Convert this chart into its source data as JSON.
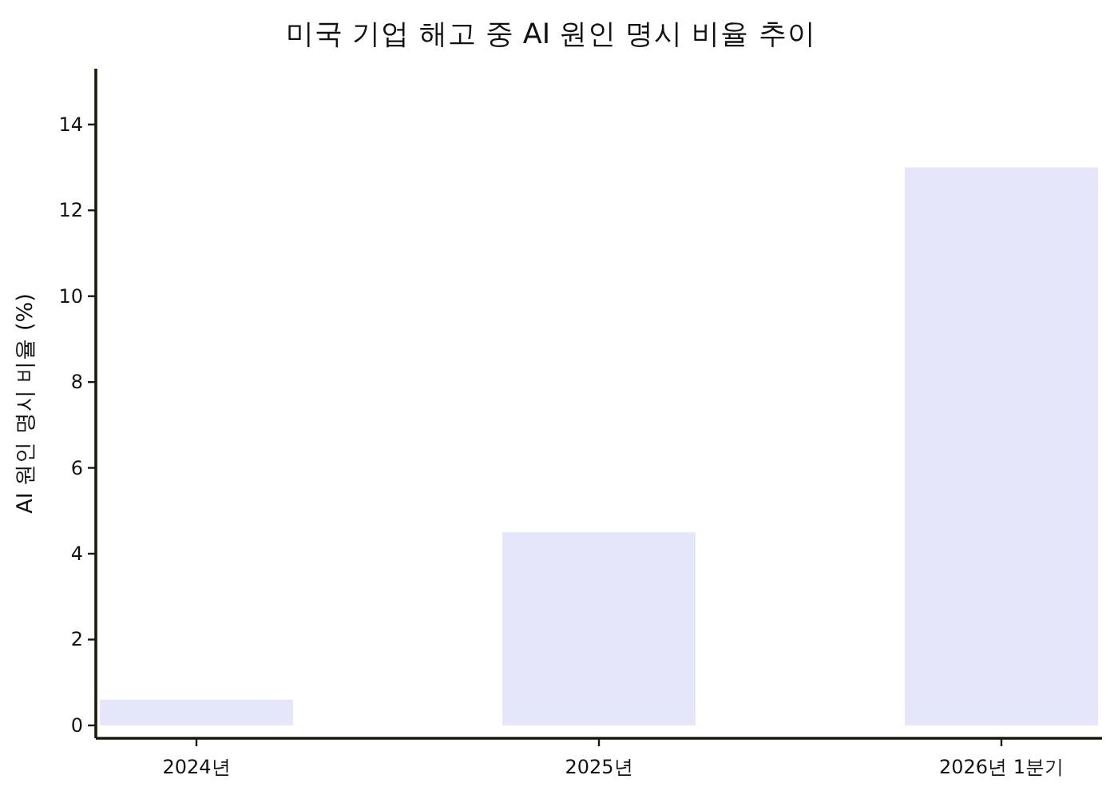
{
  "chart_data": {
    "type": "bar",
    "title": "미국 기업 해고 중 AI 원인 명시 비율 추이",
    "ylabel": "AI 원인 명시 비율 (%)",
    "categories": [
      "2024년",
      "2025년",
      "2026년 1분기"
    ],
    "values": [
      0.6,
      4.5,
      13.0
    ],
    "color": "#e6e6fa",
    "ylim": [
      -0.3,
      15.3
    ],
    "yticks": [
      0,
      2,
      4,
      6,
      8,
      10,
      12,
      14
    ]
  }
}
